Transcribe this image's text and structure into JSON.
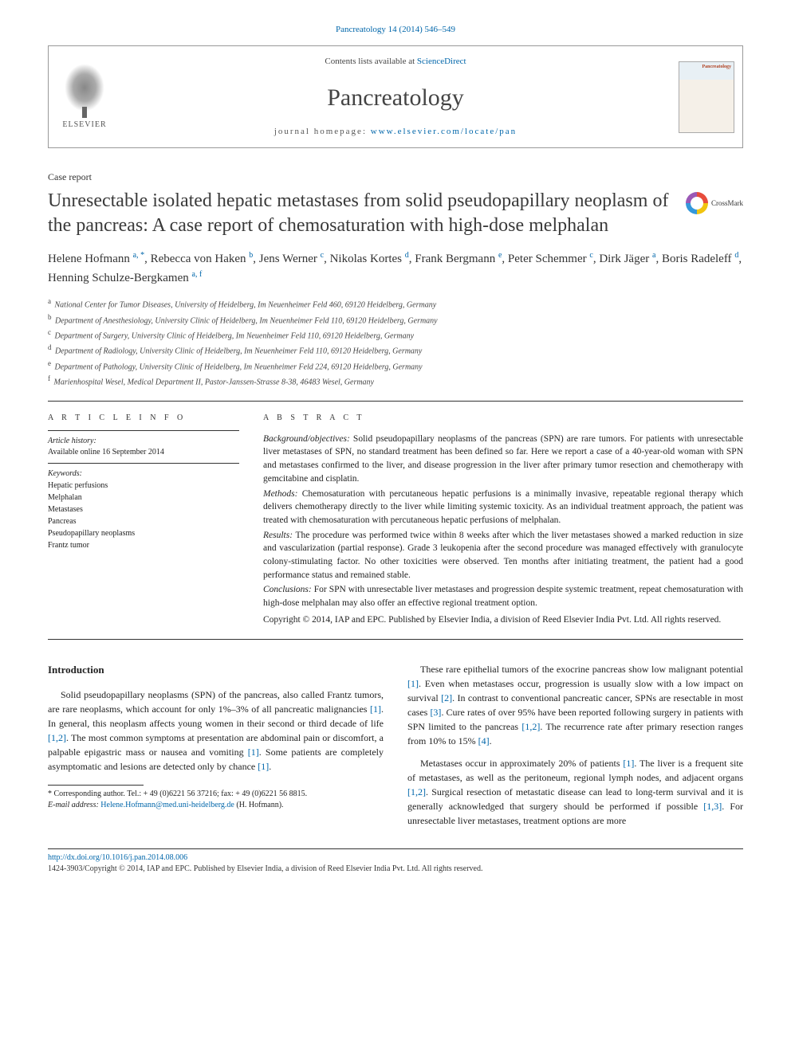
{
  "citation": "Pancreatology 14 (2014) 546–549",
  "header": {
    "publisher": "ELSEVIER",
    "contents_prefix": "Contents lists available at ",
    "contents_link": "ScienceDirect",
    "journal": "Pancreatology",
    "homepage_prefix": "journal homepage: ",
    "homepage_url": "www.elsevier.com/locate/pan",
    "cover_title": "Pancreatology"
  },
  "article_type": "Case report",
  "title": "Unresectable isolated hepatic metastases from solid pseudopapillary neoplasm of the pancreas: A case report of chemosaturation with high-dose melphalan",
  "crossmark": "CrossMark",
  "authors_html": "Helene Hofmann <sup>a, *</sup>, Rebecca von Haken <sup>b</sup>, Jens Werner <sup>c</sup>, Nikolas Kortes <sup>d</sup>, Frank Bergmann <sup>e</sup>, Peter Schemmer <sup>c</sup>, Dirk Jäger <sup>a</sup>, Boris Radeleff <sup>d</sup>, Henning Schulze-Bergkamen <sup>a, f</sup>",
  "affiliations": [
    {
      "sup": "a",
      "text": "National Center for Tumor Diseases, University of Heidelberg, Im Neuenheimer Feld 460, 69120 Heidelberg, Germany"
    },
    {
      "sup": "b",
      "text": "Department of Anesthesiology, University Clinic of Heidelberg, Im Neuenheimer Feld 110, 69120 Heidelberg, Germany"
    },
    {
      "sup": "c",
      "text": "Department of Surgery, University Clinic of Heidelberg, Im Neuenheimer Feld 110, 69120 Heidelberg, Germany"
    },
    {
      "sup": "d",
      "text": "Department of Radiology, University Clinic of Heidelberg, Im Neuenheimer Feld 110, 69120 Heidelberg, Germany"
    },
    {
      "sup": "e",
      "text": "Department of Pathology, University Clinic of Heidelberg, Im Neuenheimer Feld 224, 69120 Heidelberg, Germany"
    },
    {
      "sup": "f",
      "text": "Marienhospital Wesel, Medical Department II, Pastor-Janssen-Strasse 8-38, 46483 Wesel, Germany"
    }
  ],
  "info": {
    "head": "A R T I C L E   I N F O",
    "history_label": "Article history:",
    "history_text": "Available online 16 September 2014",
    "keywords_label": "Keywords:",
    "keywords": [
      "Hepatic perfusions",
      "Melphalan",
      "Metastases",
      "Pancreas",
      "Pseudopapillary neoplasms",
      "Frantz tumor"
    ]
  },
  "abstract": {
    "head": "A B S T R A C T",
    "background_label": "Background/objectives:",
    "background": " Solid pseudopapillary neoplasms of the pancreas (SPN) are rare tumors. For patients with unresectable liver metastases of SPN, no standard treatment has been defined so far. Here we report a case of a 40-year-old woman with SPN and metastases confirmed to the liver, and disease progression in the liver after primary tumor resection and chemotherapy with gemcitabine and cisplatin.",
    "methods_label": "Methods:",
    "methods": " Chemosaturation with percutaneous hepatic perfusions is a minimally invasive, repeatable regional therapy which delivers chemotherapy directly to the liver while limiting systemic toxicity. As an individual treatment approach, the patient was treated with chemosaturation with percutaneous hepatic perfusions of melphalan.",
    "results_label": "Results:",
    "results": " The procedure was performed twice within 8 weeks after which the liver metastases showed a marked reduction in size and vascularization (partial response). Grade 3 leukopenia after the second procedure was managed effectively with granulocyte colony-stimulating factor. No other toxicities were observed. Ten months after initiating treatment, the patient had a good performance status and remained stable.",
    "conclusions_label": "Conclusions:",
    "conclusions": " For SPN with unresectable liver metastases and progression despite systemic treatment, repeat chemosaturation with high-dose melphalan may also offer an effective regional treatment option.",
    "copyright": "Copyright © 2014, IAP and EPC. Published by Elsevier India, a division of Reed Elsevier India Pvt. Ltd. All rights reserved."
  },
  "body": {
    "intro_head": "Introduction",
    "p1_a": "Solid pseudopapillary neoplasms (SPN) of the pancreas, also called Frantz tumors, are rare neoplasms, which account for only 1%–3% of all pancreatic malignancies ",
    "p1_b": ". In general, this neoplasm affects young women in their second or third decade of life ",
    "p1_c": ". The most common symptoms at presentation are abdominal pain or discomfort, a palpable epigastric mass or nausea and vomiting ",
    "p1_d": ". Some patients are completely asymptomatic and lesions are detected only by chance ",
    "p1_e": ".",
    "p2_a": "These rare epithelial tumors of the exocrine pancreas show low malignant potential ",
    "p2_b": ". Even when metastases occur, progression is usually slow with a low impact on survival ",
    "p2_c": ". In contrast to conventional pancreatic cancer, SPNs are resectable in most cases ",
    "p2_d": ". Cure rates of over 95% have been reported following surgery in patients with SPN limited to the pancreas ",
    "p2_e": ". The recurrence rate after primary resection ranges from 10% to 15% ",
    "p2_f": ".",
    "p3_a": "Metastases occur in approximately 20% of patients ",
    "p3_b": ". The liver is a frequent site of metastases, as well as the peritoneum, regional lymph nodes, and adjacent organs ",
    "p3_c": ". Surgical resection of metastatic disease can lead to long-term survival and it is generally acknowledged that surgery should be performed if possible ",
    "p3_d": ". For unresectable liver metastases, treatment options are more",
    "refs": {
      "r1": "[1]",
      "r12": "[1,2]",
      "r2": "[2]",
      "r3": "[3]",
      "r4": "[4]",
      "r13": "[1,3]"
    }
  },
  "footnote": {
    "corr": "* Corresponding author. Tel.: + 49 (0)6221 56 37216; fax: + 49 (0)6221 56 8815.",
    "email_label": "E-mail address: ",
    "email": "Helene.Hofmann@med.uni-heidelberg.de",
    "email_suffix": " (H. Hofmann)."
  },
  "doi": {
    "url": "http://dx.doi.org/10.1016/j.pan.2014.08.006",
    "issn_line": "1424-3903/Copyright © 2014, IAP and EPC. Published by Elsevier India, a division of Reed Elsevier India Pvt. Ltd. All rights reserved."
  },
  "colors": {
    "link": "#0066aa",
    "text": "#222222",
    "rule": "#333333"
  }
}
